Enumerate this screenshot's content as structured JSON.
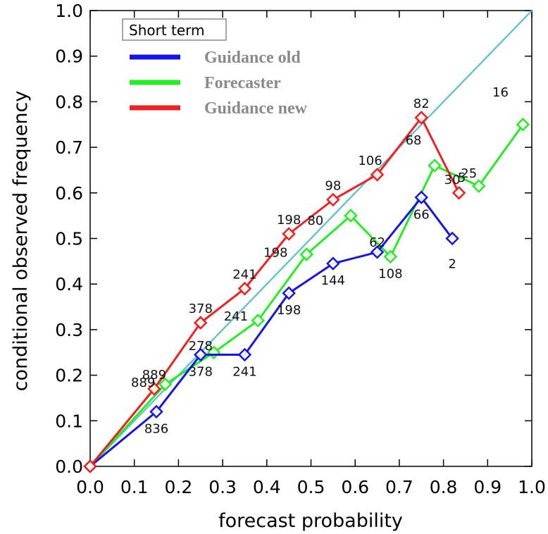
{
  "chart_data": {
    "type": "line",
    "title": "",
    "xlabel": "forecast probability",
    "ylabel": "conditional observed frequency",
    "xlim": [
      0.0,
      1.0
    ],
    "ylim": [
      0.0,
      1.0
    ],
    "x_ticks": [
      "0.0",
      "0.1",
      "0.2",
      "0.3",
      "0.4",
      "0.5",
      "0.6",
      "0.7",
      "0.8",
      "0.9",
      "1.0"
    ],
    "y_ticks": [
      "0.0",
      "0.1",
      "0.2",
      "0.3",
      "0.4",
      "0.5",
      "0.6",
      "0.7",
      "0.8",
      "0.9",
      "1.0"
    ],
    "legend_title": "Short term",
    "legend_placement": "top-left",
    "diagonal": {
      "color": "#5fc8d8"
    },
    "series": [
      {
        "name": "Guidance old",
        "color": "#1515e6",
        "points": [
          {
            "x": 0.0,
            "y": 0.0,
            "label": ""
          },
          {
            "x": 0.15,
            "y": 0.12,
            "label": "836"
          },
          {
            "x": 0.25,
            "y": 0.245,
            "label": "378"
          },
          {
            "x": 0.35,
            "y": 0.245,
            "label": "241"
          },
          {
            "x": 0.45,
            "y": 0.38,
            "label": "198"
          },
          {
            "x": 0.55,
            "y": 0.445,
            "label": "144"
          },
          {
            "x": 0.65,
            "y": 0.47,
            "label": "62"
          },
          {
            "x": 0.75,
            "y": 0.59,
            "label": "66"
          },
          {
            "x": 0.82,
            "y": 0.5,
            "label": "2"
          }
        ]
      },
      {
        "name": "Forecaster",
        "color": "#22ee22",
        "points": [
          {
            "x": 0.0,
            "y": 0.0,
            "label": ""
          },
          {
            "x": 0.17,
            "y": 0.18,
            "label": ""
          },
          {
            "x": 0.28,
            "y": 0.25,
            "label": ""
          },
          {
            "x": 0.38,
            "y": 0.32,
            "label": ""
          },
          {
            "x": 0.49,
            "y": 0.465,
            "label": ""
          },
          {
            "x": 0.59,
            "y": 0.55,
            "label": ""
          },
          {
            "x": 0.68,
            "y": 0.46,
            "label": "108"
          },
          {
            "x": 0.78,
            "y": 0.66,
            "label": "68"
          },
          {
            "x": 0.88,
            "y": 0.615,
            "label": "25"
          },
          {
            "x": 0.98,
            "y": 0.75,
            "label": "16"
          }
        ]
      },
      {
        "name": "Guidance new",
        "color": "#ee2020",
        "points": [
          {
            "x": 0.0,
            "y": 0.0,
            "label": ""
          },
          {
            "x": 0.145,
            "y": 0.17,
            "label": "889"
          },
          {
            "x": 0.25,
            "y": 0.315,
            "label": "378"
          },
          {
            "x": 0.35,
            "y": 0.39,
            "label": "241"
          },
          {
            "x": 0.45,
            "y": 0.51,
            "label": "198"
          },
          {
            "x": 0.55,
            "y": 0.585,
            "label": "98"
          },
          {
            "x": 0.65,
            "y": 0.64,
            "label": "106"
          },
          {
            "x": 0.75,
            "y": 0.765,
            "label": "82"
          },
          {
            "x": 0.835,
            "y": 0.6,
            "label": "5"
          }
        ]
      }
    ],
    "extra_labels": [
      {
        "text": "889",
        "x": 0.12,
        "y": 0.175
      },
      {
        "text": "278",
        "x": 0.25,
        "y": 0.255
      },
      {
        "text": "241",
        "x": 0.33,
        "y": 0.32
      },
      {
        "text": "198",
        "x": 0.42,
        "y": 0.46
      },
      {
        "text": "80",
        "x": 0.51,
        "y": 0.53
      },
      {
        "text": "30",
        "x": 0.82,
        "y": 0.62
      }
    ]
  }
}
